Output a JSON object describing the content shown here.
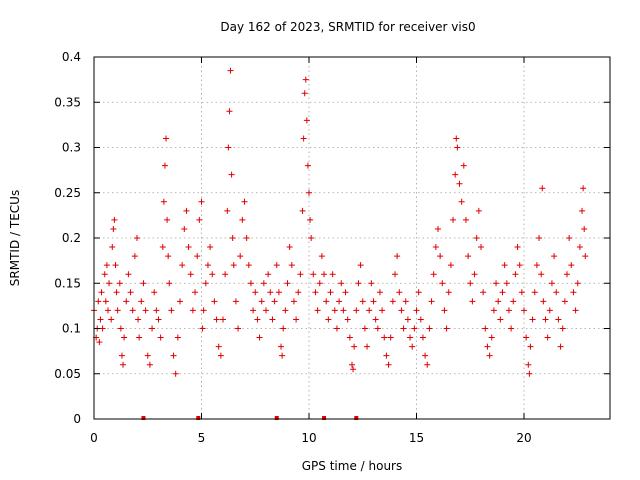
{
  "chart_data": {
    "type": "scatter",
    "title": "Day 162 of 2023, SRMTID for receiver vis0",
    "xlabel": "GPS time / hours",
    "ylabel": "SRMTID / TECUs",
    "xlim": [
      0,
      24
    ],
    "ylim": [
      0,
      0.4
    ],
    "xticks": [
      0,
      5,
      10,
      15,
      20
    ],
    "xtick_labels": [
      "0",
      "5",
      "10",
      "15",
      "20"
    ],
    "yticks": [
      0,
      0.05,
      0.1,
      0.15,
      0.2,
      0.25,
      0.3,
      0.35,
      0.4
    ],
    "ytick_labels": [
      "0",
      "0.05",
      "0.1",
      "0.15",
      "0.2",
      "0.25",
      "0.3",
      "0.35",
      "0.4"
    ],
    "grid": true,
    "marker": "+",
    "color": "#e00000",
    "series": [
      {
        "name": "vis0",
        "points": [
          [
            0.0,
            0.12
          ],
          [
            0.1,
            0.09
          ],
          [
            0.15,
            0.1
          ],
          [
            0.2,
            0.13
          ],
          [
            0.25,
            0.085
          ],
          [
            0.3,
            0.11
          ],
          [
            0.35,
            0.14
          ],
          [
            0.4,
            0.1
          ],
          [
            0.5,
            0.16
          ],
          [
            0.55,
            0.13
          ],
          [
            0.6,
            0.17
          ],
          [
            0.65,
            0.12
          ],
          [
            0.7,
            0.15
          ],
          [
            0.8,
            0.11
          ],
          [
            0.85,
            0.19
          ],
          [
            0.9,
            0.21
          ],
          [
            0.95,
            0.22
          ],
          [
            1.0,
            0.17
          ],
          [
            1.05,
            0.14
          ],
          [
            1.1,
            0.12
          ],
          [
            1.2,
            0.15
          ],
          [
            1.25,
            0.1
          ],
          [
            1.3,
            0.07
          ],
          [
            1.35,
            0.06
          ],
          [
            1.4,
            0.09
          ],
          [
            1.5,
            0.13
          ],
          [
            1.6,
            0.16
          ],
          [
            1.7,
            0.14
          ],
          [
            1.8,
            0.12
          ],
          [
            1.9,
            0.18
          ],
          [
            2.0,
            0.2
          ],
          [
            2.05,
            0.11
          ],
          [
            2.1,
            0.09
          ],
          [
            2.2,
            0.13
          ],
          [
            2.3,
            0.15
          ],
          [
            2.4,
            0.12
          ],
          [
            2.5,
            0.07
          ],
          [
            2.6,
            0.06
          ],
          [
            2.7,
            0.1
          ],
          [
            2.8,
            0.14
          ],
          [
            2.9,
            0.12
          ],
          [
            3.0,
            0.11
          ],
          [
            3.1,
            0.09
          ],
          [
            3.2,
            0.19
          ],
          [
            3.25,
            0.24
          ],
          [
            3.3,
            0.28
          ],
          [
            3.35,
            0.31
          ],
          [
            3.4,
            0.22
          ],
          [
            3.45,
            0.18
          ],
          [
            3.5,
            0.15
          ],
          [
            3.6,
            0.12
          ],
          [
            3.7,
            0.07
          ],
          [
            3.8,
            0.05
          ],
          [
            3.9,
            0.09
          ],
          [
            4.0,
            0.13
          ],
          [
            4.1,
            0.17
          ],
          [
            4.2,
            0.21
          ],
          [
            4.3,
            0.23
          ],
          [
            4.4,
            0.19
          ],
          [
            4.5,
            0.16
          ],
          [
            4.6,
            0.12
          ],
          [
            4.7,
            0.14
          ],
          [
            4.8,
            0.18
          ],
          [
            4.9,
            0.22
          ],
          [
            5.0,
            0.24
          ],
          [
            5.05,
            0.1
          ],
          [
            5.1,
            0.12
          ],
          [
            5.2,
            0.15
          ],
          [
            5.3,
            0.17
          ],
          [
            5.4,
            0.19
          ],
          [
            5.5,
            0.16
          ],
          [
            5.6,
            0.13
          ],
          [
            5.7,
            0.11
          ],
          [
            5.8,
            0.08
          ],
          [
            5.9,
            0.07
          ],
          [
            6.0,
            0.11
          ],
          [
            6.1,
            0.16
          ],
          [
            6.2,
            0.23
          ],
          [
            6.25,
            0.3
          ],
          [
            6.3,
            0.34
          ],
          [
            6.35,
            0.385
          ],
          [
            6.4,
            0.27
          ],
          [
            6.45,
            0.2
          ],
          [
            6.5,
            0.17
          ],
          [
            6.6,
            0.13
          ],
          [
            6.7,
            0.1
          ],
          [
            6.8,
            0.18
          ],
          [
            6.9,
            0.22
          ],
          [
            7.0,
            0.24
          ],
          [
            7.1,
            0.2
          ],
          [
            7.2,
            0.17
          ],
          [
            7.3,
            0.15
          ],
          [
            7.4,
            0.12
          ],
          [
            7.5,
            0.14
          ],
          [
            7.6,
            0.11
          ],
          [
            7.7,
            0.09
          ],
          [
            7.8,
            0.13
          ],
          [
            7.9,
            0.15
          ],
          [
            8.0,
            0.12
          ],
          [
            8.1,
            0.16
          ],
          [
            8.2,
            0.14
          ],
          [
            8.3,
            0.11
          ],
          [
            8.4,
            0.13
          ],
          [
            8.5,
            0.17
          ],
          [
            8.6,
            0.14
          ],
          [
            8.7,
            0.08
          ],
          [
            8.75,
            0.07
          ],
          [
            8.8,
            0.1
          ],
          [
            8.9,
            0.12
          ],
          [
            9.0,
            0.15
          ],
          [
            9.1,
            0.19
          ],
          [
            9.2,
            0.17
          ],
          [
            9.3,
            0.13
          ],
          [
            9.4,
            0.11
          ],
          [
            9.5,
            0.14
          ],
          [
            9.6,
            0.16
          ],
          [
            9.7,
            0.23
          ],
          [
            9.75,
            0.31
          ],
          [
            9.8,
            0.36
          ],
          [
            9.85,
            0.375
          ],
          [
            9.9,
            0.33
          ],
          [
            9.95,
            0.28
          ],
          [
            10.0,
            0.25
          ],
          [
            10.05,
            0.22
          ],
          [
            10.1,
            0.2
          ],
          [
            10.2,
            0.16
          ],
          [
            10.3,
            0.14
          ],
          [
            10.4,
            0.12
          ],
          [
            10.5,
            0.15
          ],
          [
            10.6,
            0.18
          ],
          [
            10.7,
            0.16
          ],
          [
            10.8,
            0.13
          ],
          [
            10.9,
            0.11
          ],
          [
            11.0,
            0.14
          ],
          [
            11.1,
            0.16
          ],
          [
            11.2,
            0.12
          ],
          [
            11.3,
            0.1
          ],
          [
            11.4,
            0.13
          ],
          [
            11.5,
            0.15
          ],
          [
            11.6,
            0.12
          ],
          [
            11.7,
            0.14
          ],
          [
            11.8,
            0.11
          ],
          [
            11.9,
            0.09
          ],
          [
            12.0,
            0.06
          ],
          [
            12.05,
            0.055
          ],
          [
            12.1,
            0.08
          ],
          [
            12.2,
            0.12
          ],
          [
            12.3,
            0.15
          ],
          [
            12.4,
            0.17
          ],
          [
            12.5,
            0.13
          ],
          [
            12.6,
            0.1
          ],
          [
            12.7,
            0.08
          ],
          [
            12.8,
            0.12
          ],
          [
            12.9,
            0.15
          ],
          [
            13.0,
            0.13
          ],
          [
            13.1,
            0.11
          ],
          [
            13.2,
            0.1
          ],
          [
            13.3,
            0.14
          ],
          [
            13.4,
            0.12
          ],
          [
            13.5,
            0.09
          ],
          [
            13.6,
            0.07
          ],
          [
            13.7,
            0.06
          ],
          [
            13.8,
            0.09
          ],
          [
            13.9,
            0.13
          ],
          [
            14.0,
            0.16
          ],
          [
            14.1,
            0.18
          ],
          [
            14.2,
            0.14
          ],
          [
            14.3,
            0.12
          ],
          [
            14.4,
            0.1
          ],
          [
            14.5,
            0.13
          ],
          [
            14.6,
            0.11
          ],
          [
            14.7,
            0.09
          ],
          [
            14.8,
            0.08
          ],
          [
            14.9,
            0.1
          ],
          [
            15.0,
            0.12
          ],
          [
            15.1,
            0.14
          ],
          [
            15.2,
            0.11
          ],
          [
            15.3,
            0.09
          ],
          [
            15.4,
            0.07
          ],
          [
            15.5,
            0.06
          ],
          [
            15.6,
            0.1
          ],
          [
            15.7,
            0.13
          ],
          [
            15.8,
            0.16
          ],
          [
            15.9,
            0.19
          ],
          [
            16.0,
            0.21
          ],
          [
            16.1,
            0.18
          ],
          [
            16.2,
            0.15
          ],
          [
            16.3,
            0.12
          ],
          [
            16.4,
            0.1
          ],
          [
            16.5,
            0.14
          ],
          [
            16.6,
            0.17
          ],
          [
            16.7,
            0.22
          ],
          [
            16.8,
            0.27
          ],
          [
            16.85,
            0.31
          ],
          [
            16.9,
            0.3
          ],
          [
            17.0,
            0.26
          ],
          [
            17.1,
            0.24
          ],
          [
            17.2,
            0.28
          ],
          [
            17.3,
            0.22
          ],
          [
            17.4,
            0.18
          ],
          [
            17.5,
            0.15
          ],
          [
            17.6,
            0.13
          ],
          [
            17.7,
            0.16
          ],
          [
            17.8,
            0.2
          ],
          [
            17.9,
            0.23
          ],
          [
            18.0,
            0.19
          ],
          [
            18.1,
            0.14
          ],
          [
            18.2,
            0.1
          ],
          [
            18.3,
            0.08
          ],
          [
            18.4,
            0.07
          ],
          [
            18.5,
            0.09
          ],
          [
            18.6,
            0.12
          ],
          [
            18.7,
            0.15
          ],
          [
            18.8,
            0.13
          ],
          [
            18.9,
            0.11
          ],
          [
            19.0,
            0.14
          ],
          [
            19.1,
            0.17
          ],
          [
            19.2,
            0.15
          ],
          [
            19.3,
            0.12
          ],
          [
            19.4,
            0.1
          ],
          [
            19.5,
            0.13
          ],
          [
            19.6,
            0.16
          ],
          [
            19.7,
            0.19
          ],
          [
            19.8,
            0.17
          ],
          [
            19.9,
            0.14
          ],
          [
            20.0,
            0.12
          ],
          [
            20.1,
            0.09
          ],
          [
            20.2,
            0.06
          ],
          [
            20.25,
            0.05
          ],
          [
            20.3,
            0.08
          ],
          [
            20.4,
            0.11
          ],
          [
            20.5,
            0.14
          ],
          [
            20.6,
            0.17
          ],
          [
            20.7,
            0.2
          ],
          [
            20.8,
            0.16
          ],
          [
            20.85,
            0.255
          ],
          [
            20.9,
            0.13
          ],
          [
            21.0,
            0.11
          ],
          [
            21.1,
            0.09
          ],
          [
            21.2,
            0.12
          ],
          [
            21.3,
            0.15
          ],
          [
            21.4,
            0.18
          ],
          [
            21.5,
            0.14
          ],
          [
            21.6,
            0.11
          ],
          [
            21.7,
            0.08
          ],
          [
            21.8,
            0.1
          ],
          [
            21.9,
            0.13
          ],
          [
            22.0,
            0.16
          ],
          [
            22.1,
            0.2
          ],
          [
            22.2,
            0.17
          ],
          [
            22.3,
            0.14
          ],
          [
            22.4,
            0.12
          ],
          [
            22.5,
            0.15
          ],
          [
            22.6,
            0.19
          ],
          [
            22.7,
            0.23
          ],
          [
            22.75,
            0.255
          ],
          [
            22.8,
            0.21
          ],
          [
            22.85,
            0.18
          ]
        ]
      }
    ],
    "data_gaps_hours": [
      2.3,
      4.85,
      8.5,
      10.7,
      12.2
    ]
  }
}
